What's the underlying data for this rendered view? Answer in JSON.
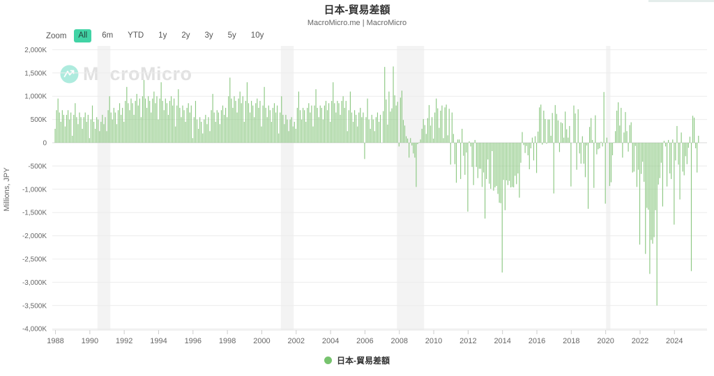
{
  "header": {
    "title": "日本-貿易差額",
    "subtitle": "MacroMicro.me | MacroMicro"
  },
  "toolbar": {
    "zoom_label": "Zoom",
    "ranges": [
      "All",
      "6m",
      "YTD",
      "1y",
      "2y",
      "3y",
      "5y",
      "10y"
    ],
    "active_range": "All"
  },
  "watermark": {
    "text": "MacroMicro",
    "logo": "macromicro-logo-icon"
  },
  "legend": {
    "label": "日本-貿易差額",
    "marker_color": "#77c36e"
  },
  "colors": {
    "bar": "#8cc882",
    "active_button_bg": "#41d3a5",
    "grid_line": "#ececec",
    "zero_line": "#d8d8d8",
    "recession_band": "#f3f3f3",
    "axis_text": "#666666"
  },
  "chart_data": {
    "type": "bar",
    "title": "日本-貿易差額",
    "ylabel": "Millions, JPY",
    "ylim": [
      -4000,
      2000
    ],
    "ytick_step": 500,
    "ytick_labels": [
      "2,000K",
      "1,500K",
      "1,000K",
      "500K",
      "0",
      "-500K",
      "-1,000K",
      "-1,500K",
      "-2,000K",
      "-2,500K",
      "-3,000K",
      "-3,500K",
      "-4,000K"
    ],
    "xtick_years": [
      1988,
      1990,
      1992,
      1994,
      1996,
      1998,
      2000,
      2002,
      2004,
      2006,
      2008,
      2010,
      2012,
      2014,
      2016,
      2018,
      2020,
      2022,
      2024
    ],
    "frequency": "monthly",
    "start": "1988-01",
    "end": "2025-06",
    "unit": "K = thousand millions JPY",
    "legend_position": "bottom",
    "grid": true,
    "recession_bands": [
      {
        "from": "1990-07",
        "to": "1991-03"
      },
      {
        "from": "2001-03",
        "to": "2001-11"
      },
      {
        "from": "2007-12",
        "to": "2009-06"
      },
      {
        "from": "2020-02",
        "to": "2020-04"
      }
    ],
    "series": [
      {
        "name": "日本-貿易差額",
        "color": "#8cc882",
        "values": [
          300,
          700,
          950,
          650,
          450,
          700,
          600,
          350,
          600,
          700,
          500,
          650,
          150,
          600,
          850,
          550,
          400,
          650,
          550,
          300,
          550,
          650,
          450,
          600,
          100,
          500,
          800,
          450,
          300,
          550,
          500,
          250,
          450,
          600,
          400,
          550,
          250,
          700,
          1000,
          650,
          500,
          750,
          650,
          400,
          700,
          850,
          600,
          750,
          450,
          900,
          1200,
          850,
          700,
          950,
          850,
          600,
          900,
          1050,
          800,
          950,
          550,
          1000,
          1350,
          950,
          750,
          1000,
          900,
          650,
          950,
          1100,
          850,
          1000,
          500,
          950,
          1300,
          900,
          700,
          950,
          850,
          600,
          900,
          1000,
          800,
          950,
          350,
          800,
          1150,
          750,
          550,
          800,
          700,
          450,
          750,
          850,
          650,
          800,
          100,
          550,
          900,
          500,
          300,
          550,
          450,
          200,
          500,
          600,
          400,
          550,
          250,
          700,
          1050,
          650,
          450,
          700,
          650,
          400,
          700,
          800,
          600,
          750,
          550,
          1000,
          1400,
          950,
          750,
          1000,
          900,
          650,
          950,
          1100,
          850,
          1000,
          450,
          900,
          1300,
          850,
          650,
          900,
          800,
          550,
          850,
          950,
          750,
          900,
          350,
          800,
          1200,
          750,
          550,
          800,
          700,
          450,
          750,
          850,
          650,
          800,
          200,
          650,
          1000,
          600,
          400,
          600,
          500,
          250,
          500,
          550,
          350,
          450,
          300,
          750,
          1100,
          700,
          500,
          750,
          700,
          450,
          750,
          850,
          650,
          800,
          350,
          800,
          1150,
          750,
          550,
          800,
          750,
          500,
          800,
          900,
          700,
          850,
          450,
          900,
          1300,
          850,
          650,
          900,
          850,
          600,
          900,
          1000,
          750,
          900,
          250,
          700,
          1100,
          650,
          450,
          700,
          600,
          350,
          650,
          750,
          550,
          650,
          -350,
          550,
          950,
          500,
          300,
          600,
          500,
          250,
          550,
          650,
          450,
          600,
          0,
          680,
          1630,
          930,
          390,
          1100,
          670,
          740,
          1640,
          1020,
          800,
          880,
          -80,
          970,
          1120,
          490,
          370,
          140,
          90,
          -320,
          100,
          -60,
          -230,
          -320,
          -950,
          -30,
          10,
          70,
          300,
          510,
          380,
          190,
          530,
          810,
          370,
          550,
          90,
          650,
          950,
          740,
          320,
          690,
          800,
          100,
          760,
          820,
          160,
          730,
          -470,
          650,
          190,
          -460,
          -860,
          70,
          70,
          -780,
          300,
          -280,
          -690,
          -210,
          -1480,
          30,
          -80,
          -520,
          -910,
          60,
          -520,
          -760,
          -560,
          -560,
          -950,
          -640,
          -1630,
          -780,
          -360,
          -880,
          -990,
          -180,
          -1030,
          -960,
          -930,
          -1100,
          -1290,
          -1300,
          -2790,
          -800,
          -1450,
          -810,
          -910,
          -820,
          -960,
          -950,
          -960,
          -710,
          -890,
          -660,
          -1180,
          -430,
          230,
          -50,
          -220,
          -70,
          -270,
          -570,
          -120,
          110,
          -380,
          140,
          -650,
          240,
          760,
          820,
          -40,
          690,
          510,
          -20,
          500,
          500,
          150,
          640,
          -1090,
          810,
          620,
          480,
          -200,
          440,
          420,
          110,
          670,
          290,
          110,
          360,
          -940,
          0,
          800,
          630,
          -580,
          720,
          -230,
          -450,
          140,
          -450,
          -740,
          -60,
          -1420,
          340,
          530,
          60,
          -970,
          590,
          -250,
          -140,
          -120,
          20,
          -80,
          1090,
          -1310,
          110,
          0,
          -930,
          -850,
          -270,
          10,
          250,
          690,
          870,
          370,
          750,
          -320,
          220,
          660,
          250,
          -190,
          380,
          440,
          -640,
          -620,
          -70,
          -950,
          -580,
          -2190,
          -670,
          -410,
          -840,
          -2390,
          -1400,
          -1440,
          -2820,
          -2090,
          -2170,
          -2030,
          -1450,
          -3500,
          -900,
          -760,
          -430,
          -1370,
          40,
          -80,
          -940,
          60,
          -660,
          -780,
          70,
          -1760,
          -380,
          360,
          -470,
          -1220,
          220,
          -620,
          -700,
          -290,
          -460,
          -110,
          130,
          -2760,
          580,
          540,
          -120,
          -640,
          150
        ]
      }
    ]
  }
}
